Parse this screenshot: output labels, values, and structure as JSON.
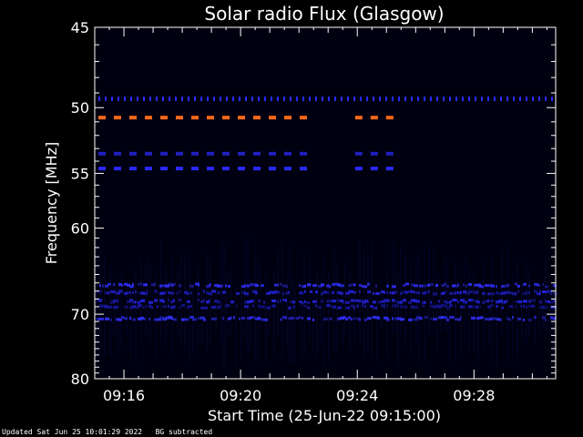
{
  "chart_data": {
    "type": "heatmap",
    "title": "Solar radio Flux (Glasgow)",
    "xlabel": "Start Time (25-Jun-22 09:15:00)",
    "ylabel": "Frequency [MHz]",
    "x_range_minutes": [
      15.0,
      30.8
    ],
    "y_range_mhz": [
      45,
      80
    ],
    "yticks": [
      {
        "value": 45,
        "label": "45"
      },
      {
        "value": 50,
        "label": "50"
      },
      {
        "value": 55,
        "label": "55"
      },
      {
        "value": 60,
        "label": "60"
      },
      {
        "value": 70,
        "label": "70"
      },
      {
        "value": 80,
        "label": "80"
      }
    ],
    "xticks": [
      {
        "value": 16,
        "label": "09:16"
      },
      {
        "value": 20,
        "label": "09:20"
      },
      {
        "value": 24,
        "label": "09:24"
      },
      {
        "value": 28,
        "label": "09:28"
      }
    ],
    "background_color": "#000010",
    "features": [
      {
        "name": "continuous-band-49.4",
        "freq": 49.4,
        "t_start": 15.0,
        "t_end": 30.8,
        "color": "#2a2aff",
        "style": "dotted"
      },
      {
        "name": "intermittent-band-50.7-a",
        "freq": 50.7,
        "t_start": 15.0,
        "t_end": 22.6,
        "color": "#ff6a1a",
        "style": "dashed"
      },
      {
        "name": "intermittent-band-50.7-b",
        "freq": 50.7,
        "t_start": 23.8,
        "t_end": 25.5,
        "color": "#ff6a1a",
        "style": "dashed"
      },
      {
        "name": "intermittent-band-53.4-a",
        "freq": 53.4,
        "t_start": 15.0,
        "t_end": 22.6,
        "color": "#2020c0",
        "style": "dashed"
      },
      {
        "name": "intermittent-band-53.4-b",
        "freq": 53.4,
        "t_start": 23.8,
        "t_end": 25.5,
        "color": "#2020c0",
        "style": "dashed"
      },
      {
        "name": "intermittent-band-54.6-a",
        "freq": 54.6,
        "t_start": 15.0,
        "t_end": 22.6,
        "color": "#2a2aff",
        "style": "dashed"
      },
      {
        "name": "intermittent-band-54.6-b",
        "freq": 54.6,
        "t_start": 23.8,
        "t_end": 25.5,
        "color": "#2a2aff",
        "style": "dashed"
      },
      {
        "name": "band-66.3",
        "freq": 66.3,
        "t_start": 15.0,
        "t_end": 30.8,
        "color": "#3030ff",
        "style": "noisy"
      },
      {
        "name": "band-67.2",
        "freq": 67.2,
        "t_start": 15.0,
        "t_end": 30.8,
        "color": "#2020d0",
        "style": "noisy"
      },
      {
        "name": "band-68.3",
        "freq": 68.3,
        "t_start": 15.0,
        "t_end": 30.8,
        "color": "#2424e0",
        "style": "noisy"
      },
      {
        "name": "band-69.0",
        "freq": 69.0,
        "t_start": 15.0,
        "t_end": 30.8,
        "color": "#1a1ab0",
        "style": "noisy"
      },
      {
        "name": "band-70.6",
        "freq": 70.6,
        "t_start": 15.0,
        "t_end": 30.8,
        "color": "#3030ff",
        "style": "noisy"
      }
    ]
  },
  "footer": {
    "updated": "Updated Sat Jun 25 10:01:29 2022",
    "note": "BG subtracted"
  }
}
